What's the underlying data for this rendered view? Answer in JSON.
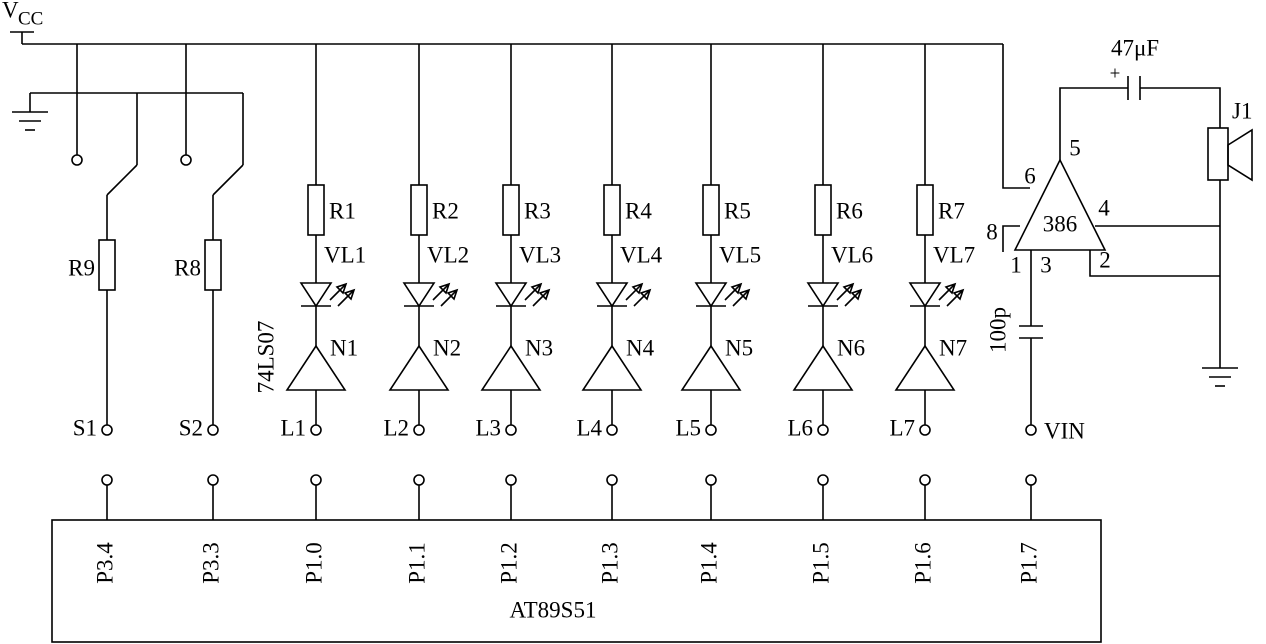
{
  "power": {
    "vcc_main": "V",
    "vcc_sub": "CC"
  },
  "channels": [
    {
      "resistor": "R1",
      "led": "VL1",
      "buffer": "N1",
      "line": "L1",
      "pin": "P1.0"
    },
    {
      "resistor": "R2",
      "led": "VL2",
      "buffer": "N2",
      "line": "L2",
      "pin": "P1.1"
    },
    {
      "resistor": "R3",
      "led": "VL3",
      "buffer": "N3",
      "line": "L3",
      "pin": "P1.2"
    },
    {
      "resistor": "R4",
      "led": "VL4",
      "buffer": "N4",
      "line": "L4",
      "pin": "P1.3"
    },
    {
      "resistor": "R5",
      "led": "VL5",
      "buffer": "N5",
      "line": "L5",
      "pin": "P1.4"
    },
    {
      "resistor": "R6",
      "led": "VL6",
      "buffer": "N6",
      "line": "L6",
      "pin": "P1.5"
    },
    {
      "resistor": "R7",
      "led": "VL7",
      "buffer": "N7",
      "line": "L7",
      "pin": "P1.6"
    }
  ],
  "switches": [
    {
      "resistor": "R9",
      "switch": "S1",
      "pin": "P3.4"
    },
    {
      "resistor": "R8",
      "switch": "S2",
      "pin": "P3.3"
    }
  ],
  "buffer_part": "74LS07",
  "amplifier": {
    "label": "386",
    "pin6": "6",
    "pin5": "5",
    "pin4": "4",
    "pin8": "8",
    "pin1": "1",
    "pin3": "3",
    "pin2": "2"
  },
  "capacitors": {
    "coupling": "47μF",
    "polarity": "+",
    "input": "100p"
  },
  "speaker": "J1",
  "input": {
    "label": "VIN",
    "pin": "P1.7"
  },
  "mcu": "AT89S51"
}
